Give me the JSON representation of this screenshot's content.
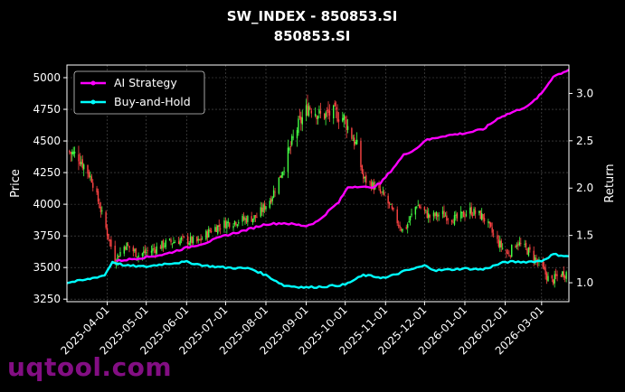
{
  "chart_data": {
    "type": "line",
    "title": "SW_INDEX - 850853.SI",
    "subtitle": "850853.SI",
    "ylabel": "Price",
    "y2label": "Return",
    "ylim": [
      3230,
      5100
    ],
    "y2lim": [
      0.8,
      3.3
    ],
    "xlim": [
      "2025-03-01",
      "2026-03-22"
    ],
    "yticks": [
      3250,
      3500,
      3750,
      4000,
      4250,
      4500,
      4750,
      5000
    ],
    "y2ticks": [
      1.0,
      1.5,
      2.0,
      2.5,
      3.0
    ],
    "xticks": [
      "2025-04-01",
      "2025-05-01",
      "2025-06-01",
      "2025-07-01",
      "2025-08-01",
      "2025-09-01",
      "2025-10-01",
      "2025-11-01",
      "2025-12-01",
      "2026-01-01",
      "2026-02-01",
      "2026-03-01"
    ],
    "grid": true,
    "legend_position": "top-left",
    "price_series": {
      "kind": "candlestick",
      "up_color": "#44ff44",
      "down_color": "#ff4444",
      "close_path": [
        [
          "2025-03-01",
          4420
        ],
        [
          "2025-03-10",
          4380
        ],
        [
          "2025-03-20",
          4200
        ],
        [
          "2025-03-26",
          3990
        ],
        [
          "2025-04-07",
          3560
        ],
        [
          "2025-04-15",
          3680
        ],
        [
          "2025-04-25",
          3600
        ],
        [
          "2025-05-06",
          3640
        ],
        [
          "2025-05-16",
          3690
        ],
        [
          "2025-05-28",
          3720
        ],
        [
          "2025-06-10",
          3700
        ],
        [
          "2025-06-20",
          3800
        ],
        [
          "2025-07-01",
          3850
        ],
        [
          "2025-07-15",
          3880
        ],
        [
          "2025-07-25",
          3900
        ],
        [
          "2025-08-05",
          4050
        ],
        [
          "2025-08-15",
          4300
        ],
        [
          "2025-08-25",
          4600
        ],
        [
          "2025-09-03",
          4780
        ],
        [
          "2025-09-12",
          4700
        ],
        [
          "2025-09-22",
          4720
        ],
        [
          "2025-09-30",
          4680
        ],
        [
          "2025-10-10",
          4450
        ],
        [
          "2025-10-15",
          4200
        ],
        [
          "2025-10-22",
          4150
        ],
        [
          "2025-11-01",
          4050
        ],
        [
          "2025-11-08",
          3900
        ],
        [
          "2025-11-15",
          3780
        ],
        [
          "2025-11-25",
          4000
        ],
        [
          "2025-12-05",
          3900
        ],
        [
          "2025-12-15",
          3920
        ],
        [
          "2025-12-25",
          3880
        ],
        [
          "2026-01-05",
          3950
        ],
        [
          "2026-01-15",
          3900
        ],
        [
          "2026-01-25",
          3720
        ],
        [
          "2026-02-03",
          3600
        ],
        [
          "2026-02-10",
          3700
        ],
        [
          "2026-02-20",
          3620
        ],
        [
          "2026-03-01",
          3500
        ],
        [
          "2026-03-08",
          3380
        ],
        [
          "2026-03-15",
          3450
        ],
        [
          "2026-03-22",
          3460
        ]
      ]
    },
    "series": [
      {
        "name": "AI Strategy",
        "color": "#ff00ff",
        "axis": "right",
        "points": [
          [
            "2025-04-08",
            1.23
          ],
          [
            "2025-04-20",
            1.25
          ],
          [
            "2025-05-01",
            1.27
          ],
          [
            "2025-05-15",
            1.3
          ],
          [
            "2025-06-01",
            1.37
          ],
          [
            "2025-06-15",
            1.42
          ],
          [
            "2025-07-01",
            1.5
          ],
          [
            "2025-07-15",
            1.55
          ],
          [
            "2025-08-01",
            1.62
          ],
          [
            "2025-08-15",
            1.63
          ],
          [
            "2025-09-01",
            1.6
          ],
          [
            "2025-09-10",
            1.65
          ],
          [
            "2025-09-20",
            1.78
          ],
          [
            "2025-09-26",
            1.85
          ],
          [
            "2025-10-03",
            2.01
          ],
          [
            "2025-10-12",
            2.02
          ],
          [
            "2025-10-20",
            2.0
          ],
          [
            "2025-10-28",
            2.05
          ],
          [
            "2025-11-05",
            2.18
          ],
          [
            "2025-11-15",
            2.35
          ],
          [
            "2025-11-25",
            2.42
          ],
          [
            "2025-12-01",
            2.5
          ],
          [
            "2025-12-15",
            2.55
          ],
          [
            "2026-01-01",
            2.58
          ],
          [
            "2026-01-15",
            2.62
          ],
          [
            "2026-01-28",
            2.75
          ],
          [
            "2026-02-10",
            2.82
          ],
          [
            "2026-02-20",
            2.88
          ],
          [
            "2026-03-01",
            3.0
          ],
          [
            "2026-03-10",
            3.18
          ],
          [
            "2026-03-22",
            3.25
          ]
        ]
      },
      {
        "name": "Buy-and-Hold",
        "color": "#00ffff",
        "axis": "right",
        "points": [
          [
            "2025-03-01",
            1.0
          ],
          [
            "2025-03-15",
            1.03
          ],
          [
            "2025-03-30",
            1.08
          ],
          [
            "2025-04-05",
            1.22
          ],
          [
            "2025-04-15",
            1.18
          ],
          [
            "2025-05-01",
            1.17
          ],
          [
            "2025-05-15",
            1.2
          ],
          [
            "2025-06-01",
            1.22
          ],
          [
            "2025-06-15",
            1.18
          ],
          [
            "2025-07-01",
            1.16
          ],
          [
            "2025-07-20",
            1.15
          ],
          [
            "2025-08-01",
            1.08
          ],
          [
            "2025-08-15",
            0.97
          ],
          [
            "2025-09-01",
            0.95
          ],
          [
            "2025-09-15",
            0.96
          ],
          [
            "2025-10-01",
            0.98
          ],
          [
            "2025-10-15",
            1.08
          ],
          [
            "2025-11-01",
            1.05
          ],
          [
            "2025-11-15",
            1.12
          ],
          [
            "2025-12-01",
            1.18
          ],
          [
            "2025-12-10",
            1.13
          ],
          [
            "2026-01-01",
            1.15
          ],
          [
            "2026-01-15",
            1.14
          ],
          [
            "2026-02-01",
            1.22
          ],
          [
            "2026-02-15",
            1.22
          ],
          [
            "2026-03-01",
            1.23
          ],
          [
            "2026-03-10",
            1.3
          ],
          [
            "2026-03-22",
            1.28
          ]
        ]
      }
    ]
  },
  "watermark": "uqtool.com"
}
